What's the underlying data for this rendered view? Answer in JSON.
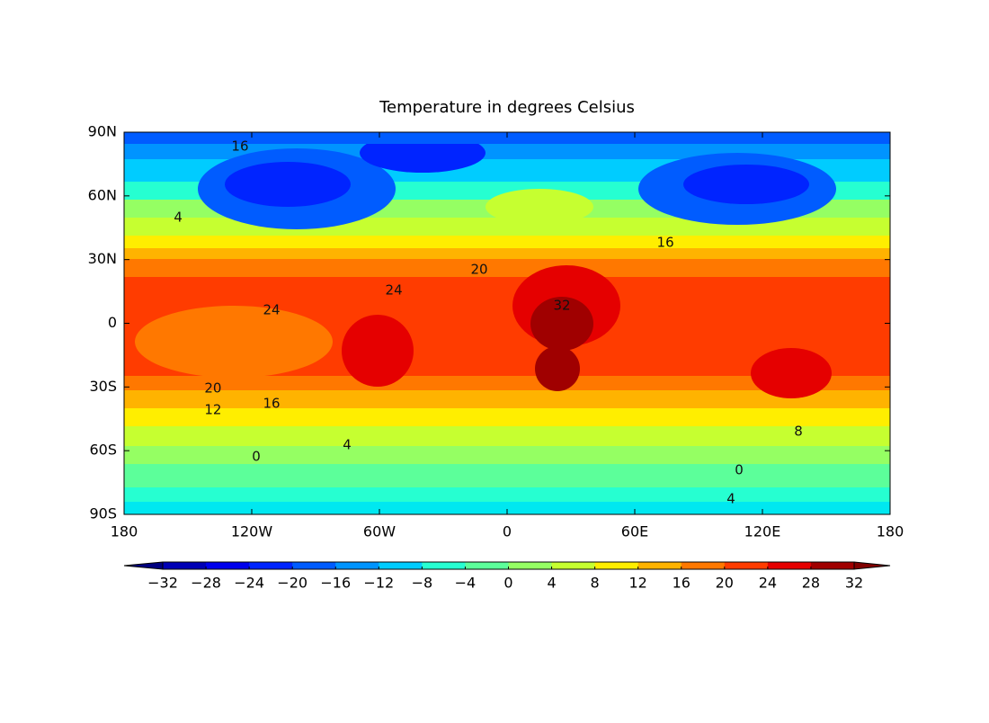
{
  "chart_data": {
    "type": "contour",
    "title": "Temperature in degrees Celsius",
    "xlim": [
      -180,
      180
    ],
    "ylim": [
      -90,
      90
    ],
    "xticks": [
      {
        "value": -180,
        "label": "180"
      },
      {
        "value": -120,
        "label": "120W"
      },
      {
        "value": -60,
        "label": "60W"
      },
      0,
      {
        "value": 60,
        "label": "60E"
      },
      {
        "value": 120,
        "label": "120E"
      },
      {
        "value": 180,
        "label": "180"
      }
    ],
    "yticks": [
      {
        "value": -90,
        "label": "90S"
      },
      {
        "value": -60,
        "label": "60S"
      },
      {
        "value": -30,
        "label": "30S"
      },
      0,
      {
        "value": 30,
        "label": "30N"
      },
      {
        "value": 60,
        "label": "60N"
      },
      {
        "value": 90,
        "label": "90N"
      }
    ],
    "colorbar": {
      "ticks": [
        {
          "value": -32,
          "label": "−32"
        },
        {
          "value": -28,
          "label": "−28"
        },
        {
          "value": -24,
          "label": "−24"
        },
        {
          "value": -20,
          "label": "−20"
        },
        {
          "value": -16,
          "label": "−16"
        },
        {
          "value": -12,
          "label": "−12"
        },
        {
          "value": -8,
          "label": "−8"
        },
        {
          "value": -4,
          "label": "−4"
        },
        0,
        4,
        8,
        12,
        16,
        20,
        24,
        28,
        32
      ],
      "colors": [
        "#0000b5",
        "#0000ec",
        "#0024ff",
        "#005cff",
        "#0094ff",
        "#00ccff",
        "#26ffd1",
        "#5cff9a",
        "#95ff63",
        "#c6ff30",
        "#ffee00",
        "#ffb300",
        "#ff7800",
        "#ff3c00",
        "#e50000",
        "#a00000"
      ],
      "under_color": "#000080",
      "over_color": "#800000"
    },
    "contour_labels": [
      {
        "value": 24,
        "lon": -110.7,
        "lat": 6.1
      },
      {
        "value": 24,
        "lon": -53.2,
        "lat": 15.5
      },
      {
        "value": 20,
        "lon": -138.2,
        "lat": -30.7
      },
      {
        "value": 16,
        "lon": -110.7,
        "lat": -37.9
      },
      {
        "value": 12,
        "lon": -138.2,
        "lat": -40.9
      },
      {
        "value": 4,
        "lon": -75.2,
        "lat": -57.4
      },
      {
        "value": 0,
        "lon": -117.9,
        "lat": -62.9
      },
      {
        "value": 8,
        "lon": 136.9,
        "lat": -51.0
      },
      {
        "value": 32,
        "lon": 25.8,
        "lat": 8.3
      },
      {
        "value": 16,
        "lon": 74.4,
        "lat": 37.9
      },
      {
        "value": 20,
        "lon": -13.1,
        "lat": 25.2
      },
      {
        "value": 4,
        "lon": -154.6,
        "lat": 49.8
      },
      {
        "value": 16,
        "lon": -125.5,
        "lat": 83.2
      },
      {
        "value": 4,
        "lon": 105.2,
        "lat": -82.8
      },
      {
        "value": 0,
        "lon": 109.0,
        "lat": -69.2
      }
    ]
  }
}
